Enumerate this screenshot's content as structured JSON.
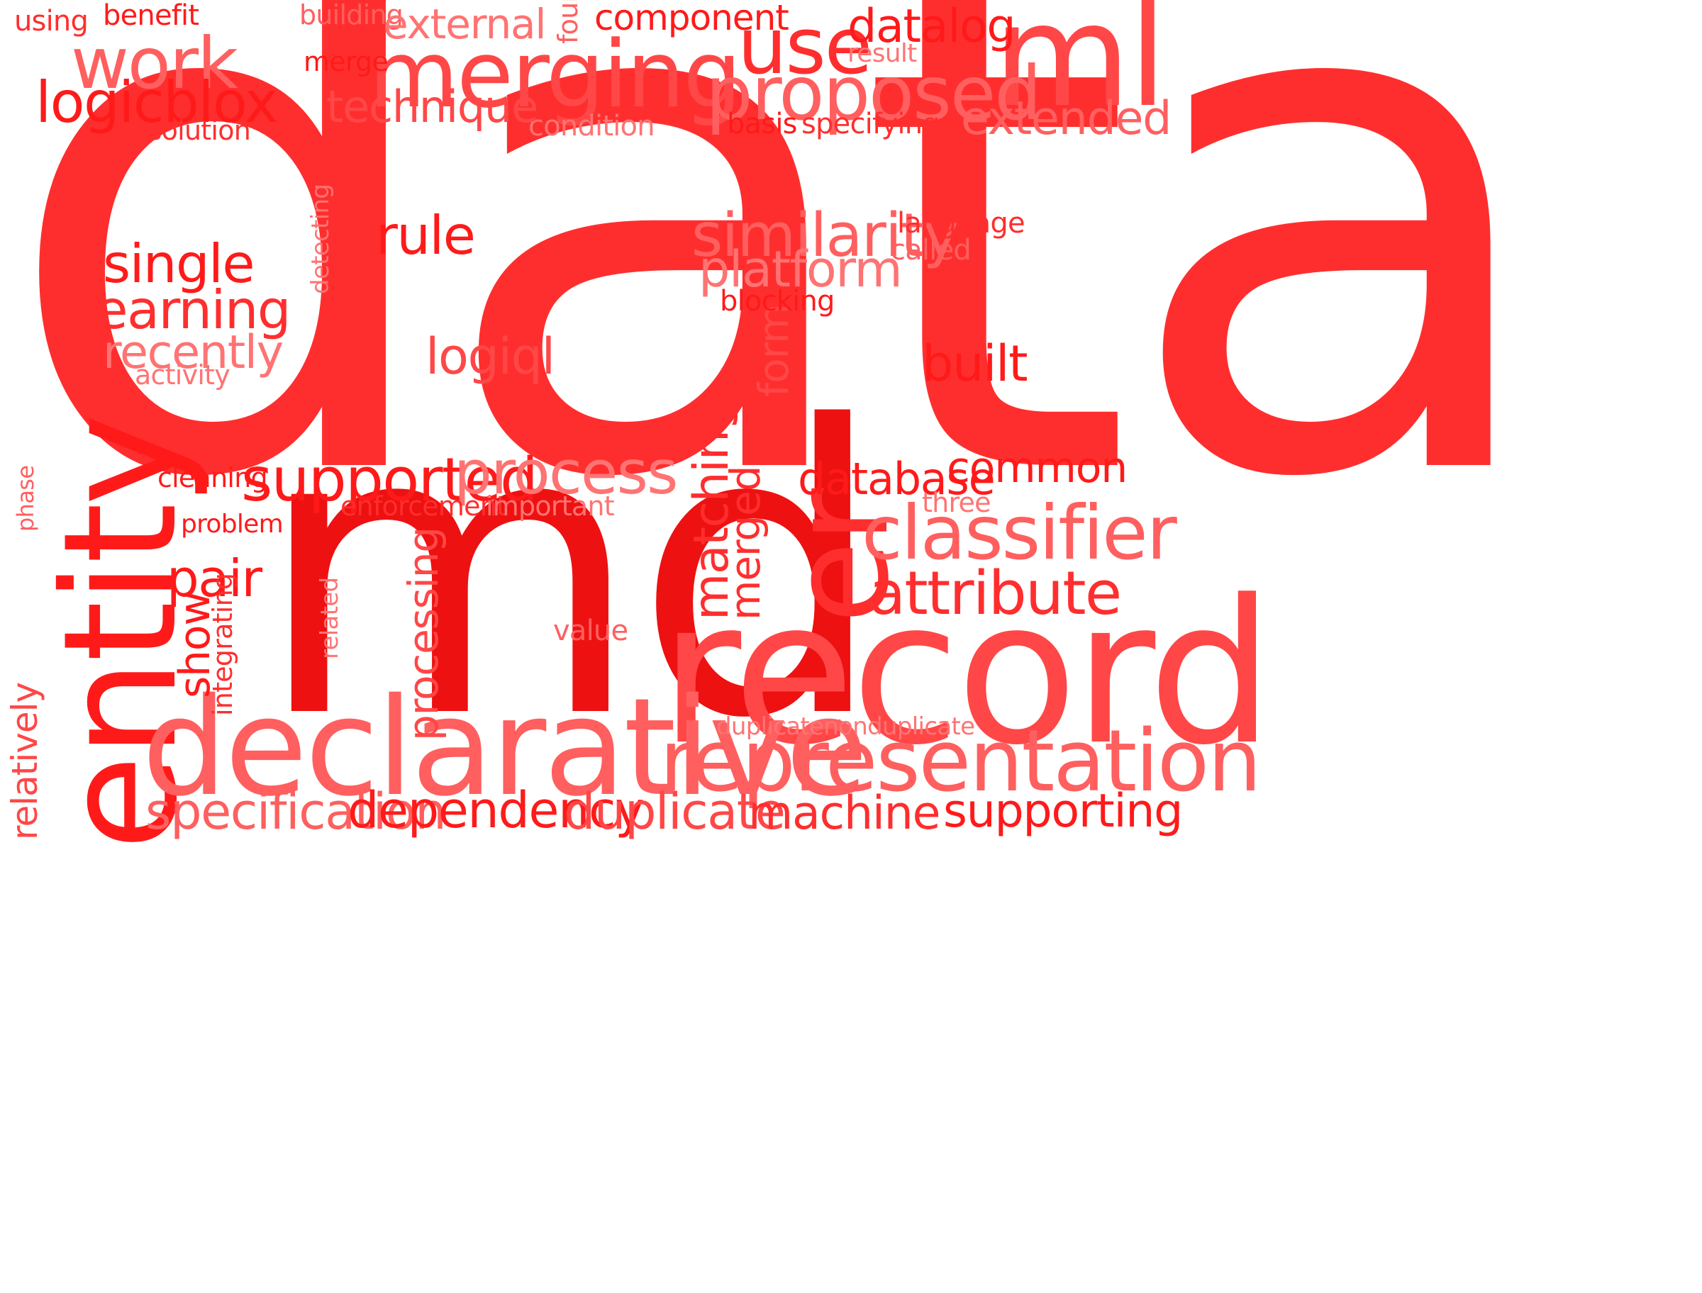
{
  "words": [
    "data",
    "md",
    "entity",
    "record",
    "declarative",
    "er",
    "representation",
    "merging",
    "ml",
    "use",
    "proposed",
    "classifier",
    "work",
    "logicblox",
    "similarity",
    "platform",
    "supported",
    "process",
    "attribute",
    "rule",
    "single",
    "learning",
    "recently",
    "activity",
    "logiql",
    "built",
    "matching",
    "merged",
    "processing",
    "specification",
    "dependency",
    "duplicate",
    "machine",
    "supporting",
    "pair",
    "show",
    "integrating",
    "relatively",
    "phase",
    "cleaning",
    "problem",
    "enforcement",
    "important",
    "database",
    "common",
    "three",
    "value",
    "related",
    "duplicatenonduplicate",
    "form",
    "blocking",
    "language",
    "called",
    "detecting",
    "datalog",
    "result",
    "extended",
    "basis",
    "specifying",
    "condition",
    "technique",
    "resolution",
    "merge",
    "building",
    "external",
    "four",
    "component",
    "benefit",
    "using"
  ]
}
